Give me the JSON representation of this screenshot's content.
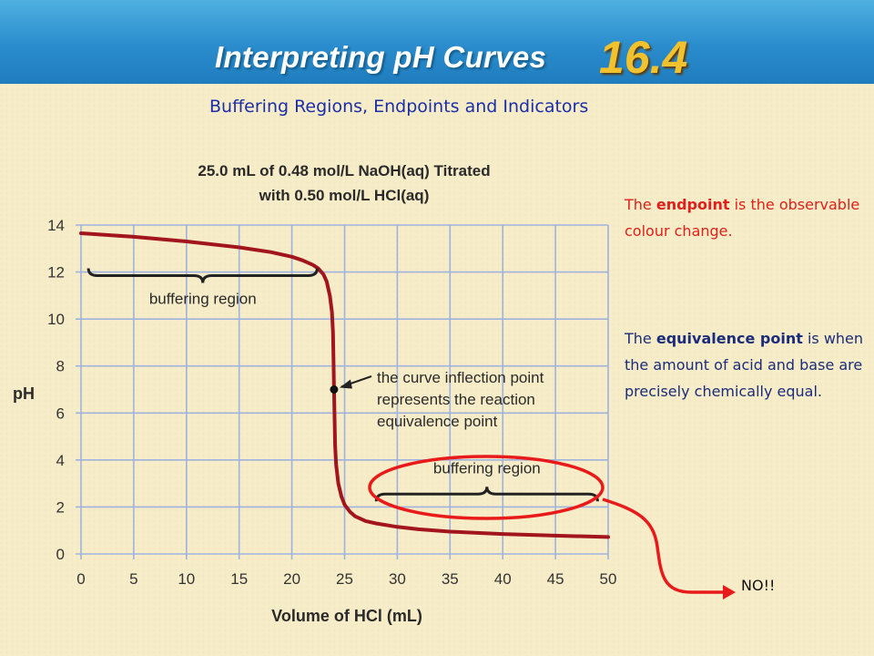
{
  "header": {
    "title": "Interpreting pH Curves",
    "number": "16.4"
  },
  "subtitle": "Buffering Regions, Endpoints and Indicators",
  "notes": {
    "endpoint": {
      "pre": "The ",
      "bold": "endpoint",
      "post": " is the observable colour change."
    },
    "equivalence": {
      "pre": "The ",
      "bold": "equivalence point",
      "post": " is when the amount of acid and base are precisely chemically equal."
    }
  },
  "no_label": "NO!!",
  "colors": {
    "curve": "#a3151c",
    "grid": "#9fb3df",
    "highlight": "#e81a1a",
    "header": "#2a8ccc"
  },
  "chart_data": {
    "type": "line",
    "title": [
      "25.0 mL of 0.48 mol/L NaOH(aq) Titrated",
      "with 0.50 mol/L HCl(aq)"
    ],
    "xlabel": "Volume of HCl (mL)",
    "ylabel": "pH",
    "xlim": [
      0,
      50
    ],
    "ylim": [
      0,
      14
    ],
    "xticks": [
      0,
      5,
      10,
      15,
      20,
      25,
      30,
      35,
      40,
      45,
      50
    ],
    "yticks": [
      0,
      2,
      4,
      6,
      8,
      10,
      12,
      14
    ],
    "grid": true,
    "series": [
      {
        "x": [
          0,
          5,
          10,
          15,
          18,
          20,
          21,
          22,
          22.5,
          23,
          23.3,
          23.6,
          23.8,
          23.9,
          24,
          24.1,
          24.2,
          24.4,
          24.7,
          25,
          25.5,
          26,
          27,
          28,
          30,
          32,
          35,
          40,
          45,
          50
        ],
        "y": [
          13.65,
          13.5,
          13.3,
          13.05,
          12.85,
          12.65,
          12.5,
          12.3,
          12.15,
          11.9,
          11.6,
          11.0,
          10.3,
          9.4,
          7.0,
          4.6,
          3.8,
          3.0,
          2.45,
          2.1,
          1.8,
          1.6,
          1.4,
          1.3,
          1.15,
          1.05,
          0.95,
          0.85,
          0.78,
          0.72
        ]
      }
    ],
    "annotations": {
      "buffer_upper": "buffering region",
      "buffer_lower": "buffering region",
      "inflection": [
        "the curve inflection point",
        "represents the reaction",
        "equivalence point"
      ],
      "equivalence_point": {
        "x": 24,
        "y": 7.0
      },
      "buffer_upper_range": {
        "x0": 0.7,
        "x1": 22.4,
        "y": 11.85
      },
      "buffer_lower_range": {
        "x0": 28,
        "x1": 49,
        "y": 4.1
      }
    }
  }
}
